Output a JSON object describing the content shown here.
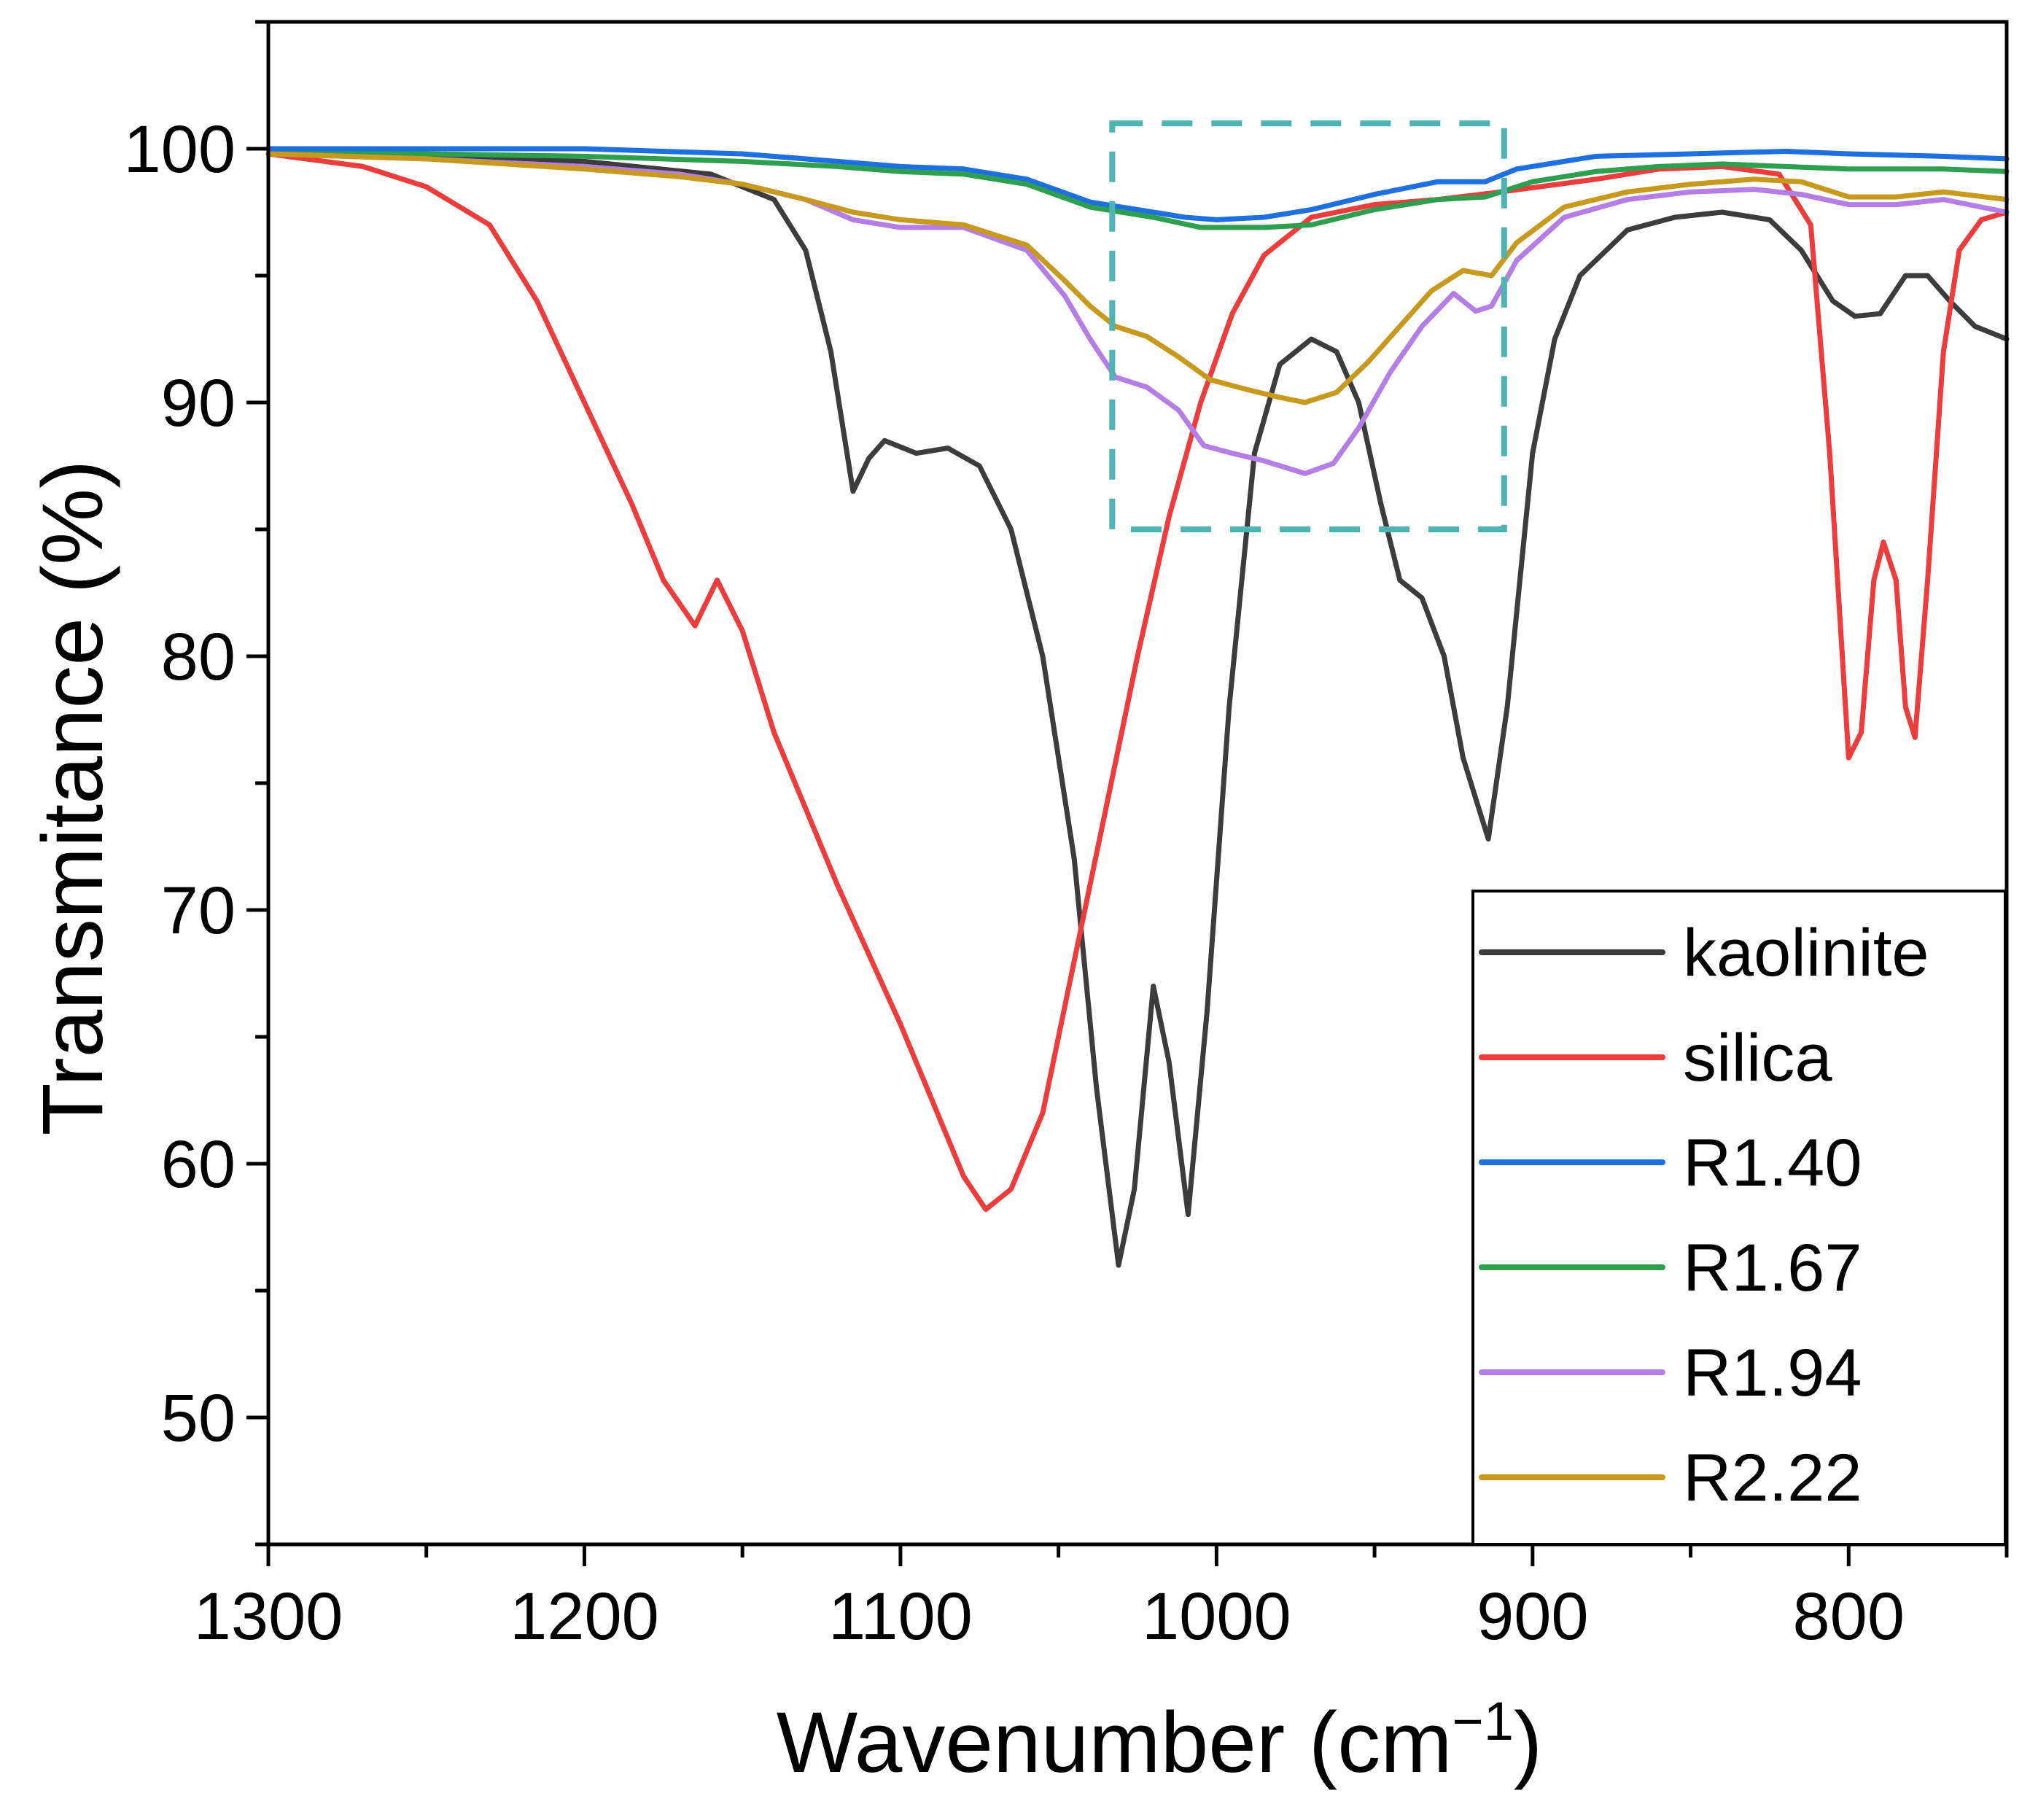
{
  "chart_data": {
    "type": "line",
    "title": "",
    "xlabel": "Wavenumber (cm",
    "xlabel_superscript": "−1",
    "xlabel_close": ")",
    "ylabel": "Transmitance (%)",
    "xlim": [
      1300,
      750
    ],
    "ylim": [
      45,
      105
    ],
    "x_reversed": true,
    "x_ticks": [
      1300,
      1200,
      1100,
      1000,
      900,
      800
    ],
    "y_ticks": [
      50,
      60,
      70,
      80,
      90,
      100
    ],
    "grid": false,
    "legend_position": "bottom-right",
    "highlight_box": {
      "x": [
        1033,
        909
      ],
      "y": [
        85,
        101
      ],
      "color": "#4DB3B3",
      "style": "dashed"
    },
    "series": [
      {
        "name": "kaolinite",
        "color": "#3C3C3C",
        "points": [
          [
            1300,
            99.8
          ],
          [
            1250,
            99.7
          ],
          [
            1200,
            99.5
          ],
          [
            1160,
            99
          ],
          [
            1140,
            98
          ],
          [
            1130,
            96
          ],
          [
            1122,
            92
          ],
          [
            1115,
            86.5
          ],
          [
            1110,
            87.8
          ],
          [
            1105,
            88.5
          ],
          [
            1095,
            88
          ],
          [
            1085,
            88.2
          ],
          [
            1075,
            87.5
          ],
          [
            1065,
            85
          ],
          [
            1055,
            80
          ],
          [
            1045,
            72
          ],
          [
            1038,
            63
          ],
          [
            1031,
            56
          ],
          [
            1026,
            59
          ],
          [
            1020,
            67
          ],
          [
            1015,
            64
          ],
          [
            1009,
            58
          ],
          [
            1003,
            66
          ],
          [
            996,
            78
          ],
          [
            988,
            88
          ],
          [
            980,
            91.5
          ],
          [
            970,
            92.5
          ],
          [
            962,
            92
          ],
          [
            955,
            90
          ],
          [
            948,
            86
          ],
          [
            942,
            83
          ],
          [
            935,
            82.3
          ],
          [
            928,
            80
          ],
          [
            922,
            76
          ],
          [
            914,
            72.8
          ],
          [
            908,
            78
          ],
          [
            900,
            88
          ],
          [
            893,
            92.5
          ],
          [
            885,
            95
          ],
          [
            870,
            96.8
          ],
          [
            855,
            97.3
          ],
          [
            840,
            97.5
          ],
          [
            825,
            97.2
          ],
          [
            815,
            96
          ],
          [
            805,
            94
          ],
          [
            798,
            93.4
          ],
          [
            790,
            93.5
          ],
          [
            782,
            95
          ],
          [
            775,
            95
          ],
          [
            768,
            94
          ],
          [
            760,
            93
          ],
          [
            750,
            92.5
          ]
        ]
      },
      {
        "name": "silica",
        "color": "#EE3B3B",
        "points": [
          [
            1300,
            99.8
          ],
          [
            1270,
            99.3
          ],
          [
            1250,
            98.5
          ],
          [
            1230,
            97
          ],
          [
            1215,
            94
          ],
          [
            1200,
            90
          ],
          [
            1185,
            86
          ],
          [
            1175,
            83
          ],
          [
            1165,
            81.2
          ],
          [
            1158,
            83
          ],
          [
            1150,
            81
          ],
          [
            1140,
            77
          ],
          [
            1120,
            71
          ],
          [
            1100,
            65.5
          ],
          [
            1090,
            62.5
          ],
          [
            1080,
            59.5
          ],
          [
            1073,
            58.2
          ],
          [
            1065,
            59
          ],
          [
            1055,
            62
          ],
          [
            1045,
            68
          ],
          [
            1035,
            74
          ],
          [
            1025,
            80
          ],
          [
            1015,
            85.5
          ],
          [
            1005,
            90
          ],
          [
            995,
            93.5
          ],
          [
            985,
            95.8
          ],
          [
            970,
            97.3
          ],
          [
            950,
            97.8
          ],
          [
            930,
            98
          ],
          [
            910,
            98.3
          ],
          [
            880,
            98.8
          ],
          [
            860,
            99.2
          ],
          [
            840,
            99.3
          ],
          [
            822,
            99
          ],
          [
            812,
            97
          ],
          [
            806,
            88
          ],
          [
            803,
            82
          ],
          [
            800,
            76
          ],
          [
            796,
            77
          ],
          [
            792,
            83
          ],
          [
            789,
            84.5
          ],
          [
            785,
            83
          ],
          [
            782,
            78
          ],
          [
            779,
            76.8
          ],
          [
            775,
            83
          ],
          [
            770,
            92
          ],
          [
            765,
            96
          ],
          [
            758,
            97.2
          ],
          [
            750,
            97.5
          ]
        ]
      },
      {
        "name": "R1.40",
        "color": "#1E6FE0",
        "points": [
          [
            1300,
            100
          ],
          [
            1250,
            100
          ],
          [
            1200,
            100
          ],
          [
            1150,
            99.8
          ],
          [
            1120,
            99.5
          ],
          [
            1100,
            99.3
          ],
          [
            1080,
            99.2
          ],
          [
            1060,
            98.8
          ],
          [
            1040,
            97.9
          ],
          [
            1025,
            97.6
          ],
          [
            1010,
            97.3
          ],
          [
            1000,
            97.2
          ],
          [
            985,
            97.3
          ],
          [
            970,
            97.6
          ],
          [
            950,
            98.2
          ],
          [
            930,
            98.7
          ],
          [
            915,
            98.7
          ],
          [
            905,
            99.2
          ],
          [
            880,
            99.7
          ],
          [
            850,
            99.8
          ],
          [
            820,
            99.9
          ],
          [
            800,
            99.8
          ],
          [
            770,
            99.7
          ],
          [
            750,
            99.6
          ]
        ]
      },
      {
        "name": "R1.67",
        "color": "#2E9E4F",
        "points": [
          [
            1300,
            99.8
          ],
          [
            1250,
            99.8
          ],
          [
            1200,
            99.7
          ],
          [
            1150,
            99.5
          ],
          [
            1120,
            99.3
          ],
          [
            1100,
            99.1
          ],
          [
            1080,
            99
          ],
          [
            1060,
            98.6
          ],
          [
            1040,
            97.7
          ],
          [
            1020,
            97.3
          ],
          [
            1005,
            96.9
          ],
          [
            985,
            96.9
          ],
          [
            970,
            97
          ],
          [
            950,
            97.6
          ],
          [
            930,
            98
          ],
          [
            915,
            98.1
          ],
          [
            900,
            98.7
          ],
          [
            880,
            99.1
          ],
          [
            860,
            99.3
          ],
          [
            840,
            99.4
          ],
          [
            820,
            99.3
          ],
          [
            800,
            99.2
          ],
          [
            770,
            99.2
          ],
          [
            750,
            99.1
          ]
        ]
      },
      {
        "name": "R1.94",
        "color": "#B57EE6",
        "points": [
          [
            1300,
            99.8
          ],
          [
            1250,
            99.6
          ],
          [
            1200,
            99.3
          ],
          [
            1170,
            99
          ],
          [
            1150,
            98.6
          ],
          [
            1130,
            98
          ],
          [
            1115,
            97.2
          ],
          [
            1100,
            96.9
          ],
          [
            1080,
            96.9
          ],
          [
            1060,
            96
          ],
          [
            1048,
            94.2
          ],
          [
            1040,
            92.5
          ],
          [
            1032,
            91
          ],
          [
            1022,
            90.6
          ],
          [
            1012,
            89.7
          ],
          [
            1004,
            88.3
          ],
          [
            995,
            88
          ],
          [
            985,
            87.7
          ],
          [
            972,
            87.2
          ],
          [
            963,
            87.6
          ],
          [
            955,
            89
          ],
          [
            945,
            91.2
          ],
          [
            935,
            93
          ],
          [
            925,
            94.3
          ],
          [
            918,
            93.6
          ],
          [
            913,
            93.8
          ],
          [
            905,
            95.6
          ],
          [
            890,
            97.3
          ],
          [
            870,
            98
          ],
          [
            850,
            98.3
          ],
          [
            830,
            98.4
          ],
          [
            815,
            98.2
          ],
          [
            800,
            97.8
          ],
          [
            785,
            97.8
          ],
          [
            770,
            98
          ],
          [
            750,
            97.5
          ]
        ]
      },
      {
        "name": "R2.22",
        "color": "#C79A1E",
        "points": [
          [
            1300,
            99.8
          ],
          [
            1250,
            99.6
          ],
          [
            1200,
            99.2
          ],
          [
            1170,
            98.9
          ],
          [
            1150,
            98.6
          ],
          [
            1130,
            98
          ],
          [
            1115,
            97.5
          ],
          [
            1100,
            97.2
          ],
          [
            1080,
            97
          ],
          [
            1060,
            96.2
          ],
          [
            1048,
            94.8
          ],
          [
            1040,
            93.8
          ],
          [
            1032,
            93
          ],
          [
            1022,
            92.6
          ],
          [
            1012,
            91.8
          ],
          [
            1002,
            90.9
          ],
          [
            990,
            90.5
          ],
          [
            980,
            90.2
          ],
          [
            972,
            90
          ],
          [
            962,
            90.4
          ],
          [
            952,
            91.6
          ],
          [
            942,
            93
          ],
          [
            932,
            94.4
          ],
          [
            922,
            95.2
          ],
          [
            913,
            95
          ],
          [
            905,
            96.3
          ],
          [
            890,
            97.7
          ],
          [
            870,
            98.3
          ],
          [
            850,
            98.6
          ],
          [
            830,
            98.8
          ],
          [
            815,
            98.7
          ],
          [
            800,
            98.1
          ],
          [
            785,
            98.1
          ],
          [
            770,
            98.3
          ],
          [
            750,
            98
          ]
        ]
      }
    ]
  }
}
